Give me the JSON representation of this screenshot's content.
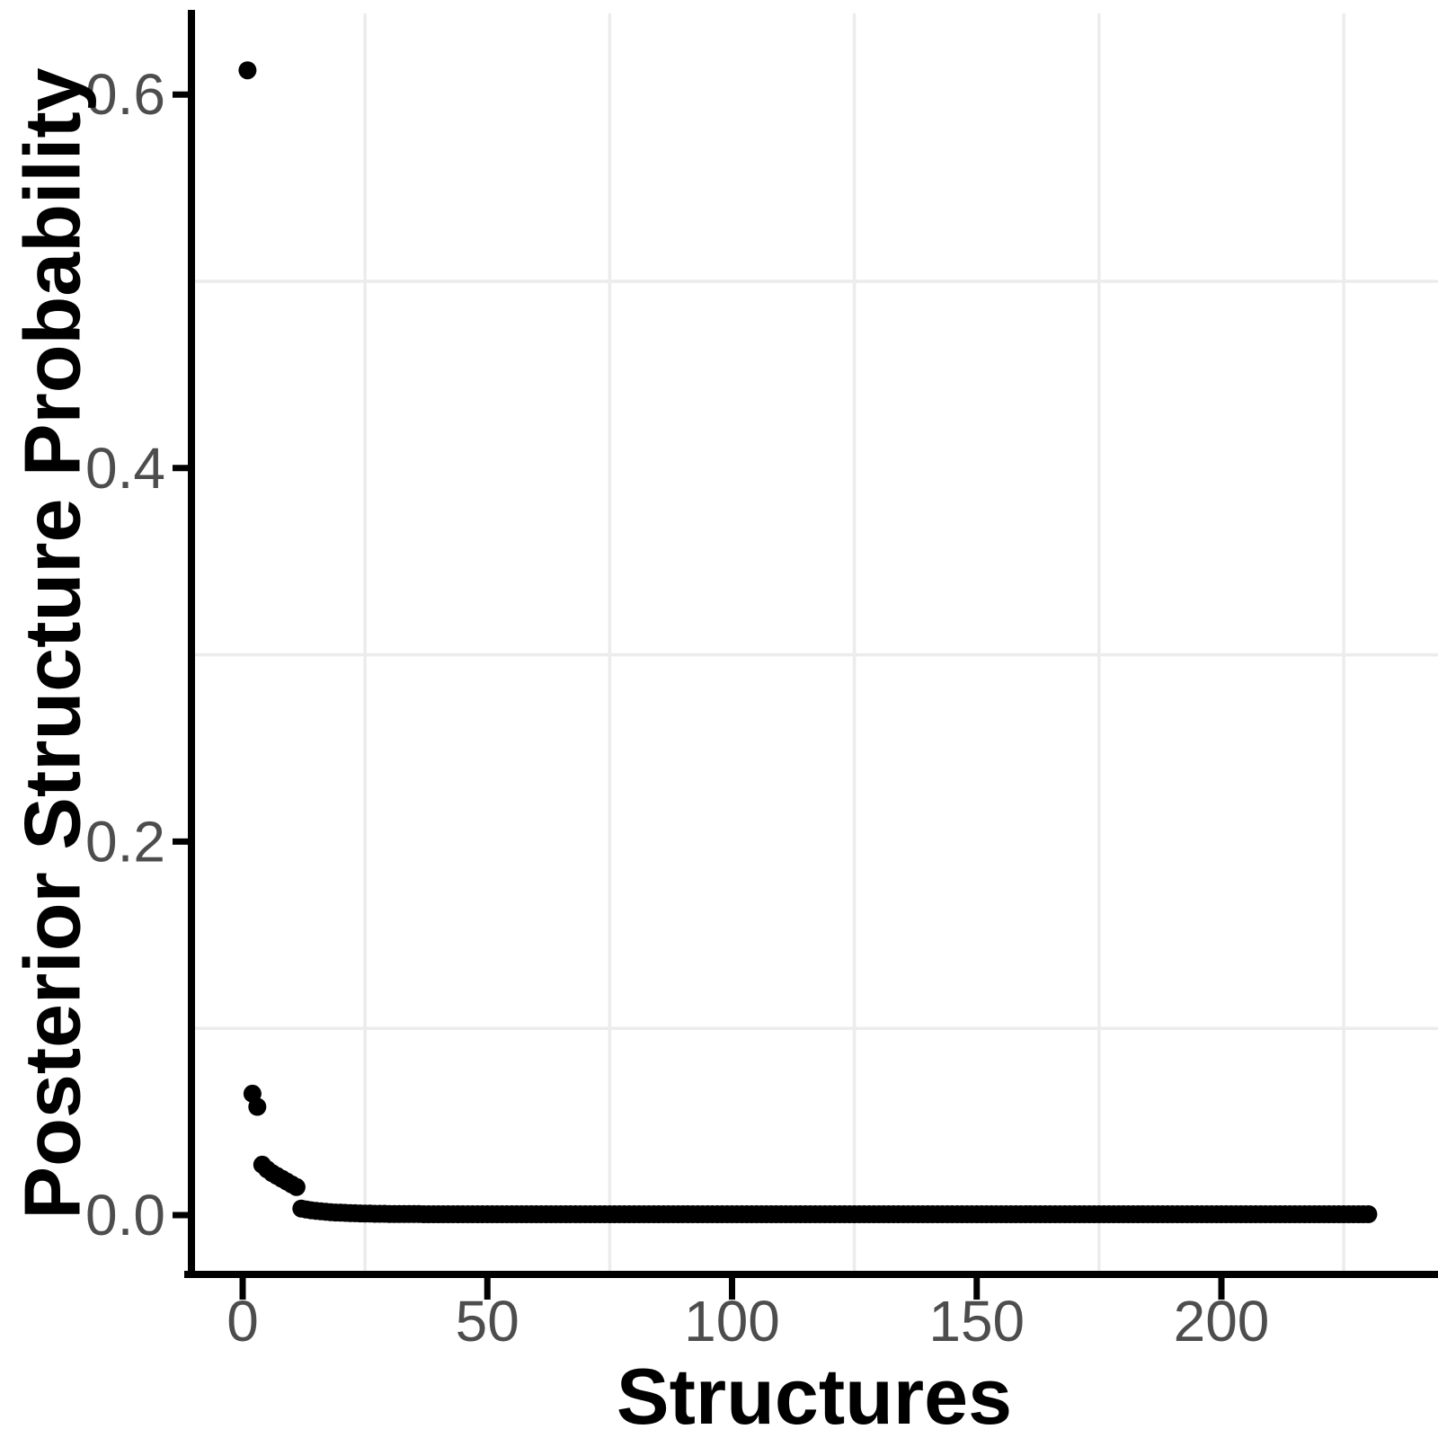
{
  "chart_data": {
    "type": "scatter",
    "title": "",
    "xlabel": "Structures",
    "ylabel": "Posterior Structure Probability",
    "x_ticks": [
      0,
      50,
      100,
      150,
      200
    ],
    "x_tick_labels": [
      "0",
      "50",
      "100",
      "150",
      "200"
    ],
    "y_ticks": [
      0.0,
      0.2,
      0.4,
      0.6
    ],
    "y_tick_labels": [
      "0.0",
      "0.2",
      "0.4",
      "0.6"
    ],
    "xlim": [
      -11,
      244
    ],
    "ylim": [
      -0.032,
      0.643
    ],
    "grid": "minor-gridlines-only",
    "minor_grid_x": [
      25,
      75,
      125,
      175,
      225
    ],
    "minor_grid_y": [
      0.1,
      0.3,
      0.5
    ],
    "legend_position": "none",
    "n_points": 230,
    "points": [
      [
        1,
        0.613
      ],
      [
        2,
        0.065
      ],
      [
        3,
        0.058
      ],
      [
        4,
        0.027
      ],
      [
        5,
        0.0245
      ],
      [
        6,
        0.0225
      ],
      [
        7,
        0.021
      ],
      [
        8,
        0.0195
      ],
      [
        9,
        0.018
      ],
      [
        10,
        0.0165
      ],
      [
        11,
        0.015
      ],
      [
        12,
        0.0035
      ],
      [
        13,
        0.003
      ],
      [
        14,
        0.0026
      ],
      [
        15,
        0.0023
      ],
      [
        16,
        0.002
      ],
      [
        17,
        0.0018
      ],
      [
        18,
        0.0016
      ],
      [
        19,
        0.0014
      ],
      [
        20,
        0.0013
      ],
      [
        21,
        0.0012
      ],
      [
        22,
        0.0011
      ],
      [
        23,
        0.001
      ],
      [
        24,
        0.0009
      ],
      [
        25,
        0.0008
      ],
      [
        26,
        0.0008
      ],
      [
        27,
        0.0007
      ],
      [
        28,
        0.0007
      ],
      [
        29,
        0.0007
      ],
      [
        30,
        0.0006
      ],
      [
        31,
        0.0006
      ],
      [
        32,
        0.0006
      ],
      [
        33,
        0.0006
      ],
      [
        34,
        0.0006
      ],
      [
        35,
        0.0006
      ],
      [
        36,
        0.0006
      ]
    ],
    "tail": {
      "x_from": 37,
      "x_to": 230,
      "y": 0.0005
    },
    "point_color": "#000000",
    "point_radius_px": 10
  },
  "style": {
    "background": "#ffffff",
    "axis_color": "#000000",
    "tick_label_color": "#4d4d4d",
    "title_color": "#000000",
    "grid_color": "#ececec"
  }
}
